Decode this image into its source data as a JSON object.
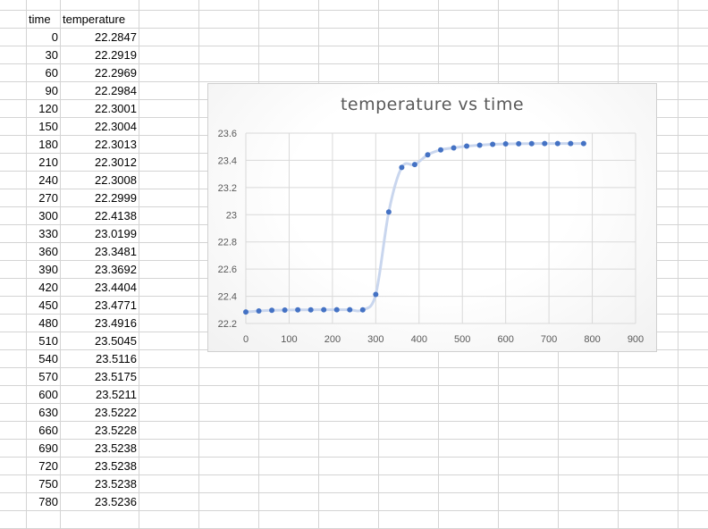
{
  "sheet": {
    "headers": [
      "time",
      "temperature"
    ],
    "rows": [
      [
        "0",
        "22.2847"
      ],
      [
        "30",
        "22.2919"
      ],
      [
        "60",
        "22.2969"
      ],
      [
        "90",
        "22.2984"
      ],
      [
        "120",
        "22.3001"
      ],
      [
        "150",
        "22.3004"
      ],
      [
        "180",
        "22.3013"
      ],
      [
        "210",
        "22.3012"
      ],
      [
        "240",
        "22.3008"
      ],
      [
        "270",
        "22.2999"
      ],
      [
        "300",
        "22.4138"
      ],
      [
        "330",
        "23.0199"
      ],
      [
        "360",
        "23.3481"
      ],
      [
        "390",
        "23.3692"
      ],
      [
        "420",
        "23.4404"
      ],
      [
        "450",
        "23.4771"
      ],
      [
        "480",
        "23.4916"
      ],
      [
        "510",
        "23.5045"
      ],
      [
        "540",
        "23.5116"
      ],
      [
        "570",
        "23.5175"
      ],
      [
        "600",
        "23.5211"
      ],
      [
        "630",
        "23.5222"
      ],
      [
        "660",
        "23.5228"
      ],
      [
        "690",
        "23.5238"
      ],
      [
        "720",
        "23.5238"
      ],
      [
        "750",
        "23.5238"
      ],
      [
        "780",
        "23.5236"
      ]
    ]
  },
  "chart_data": {
    "type": "scatter",
    "title": "temperature vs time",
    "xlabel": "",
    "ylabel": "",
    "xlim": [
      0,
      900
    ],
    "ylim": [
      22.2,
      23.6
    ],
    "x_ticks": [
      "0",
      "100",
      "200",
      "300",
      "400",
      "500",
      "600",
      "700",
      "800",
      "900"
    ],
    "y_ticks": [
      "22.2",
      "22.4",
      "22.6",
      "22.8",
      "23",
      "23.2",
      "23.4",
      "23.6"
    ],
    "grid": true,
    "smooth_line": true,
    "colors": {
      "marker": "#4472c4",
      "line": "#c9d6ee",
      "grid": "#d9d9d9"
    },
    "x": [
      0,
      30,
      60,
      90,
      120,
      150,
      180,
      210,
      240,
      270,
      300,
      330,
      360,
      390,
      420,
      450,
      480,
      510,
      540,
      570,
      600,
      630,
      660,
      690,
      720,
      750,
      780
    ],
    "y": [
      22.2847,
      22.2919,
      22.2969,
      22.2984,
      22.3001,
      22.3004,
      22.3013,
      22.3012,
      22.3008,
      22.2999,
      22.4138,
      23.0199,
      23.3481,
      23.3692,
      23.4404,
      23.4771,
      23.4916,
      23.5045,
      23.5116,
      23.5175,
      23.5211,
      23.5222,
      23.5228,
      23.5238,
      23.5238,
      23.5238,
      23.5236
    ]
  }
}
